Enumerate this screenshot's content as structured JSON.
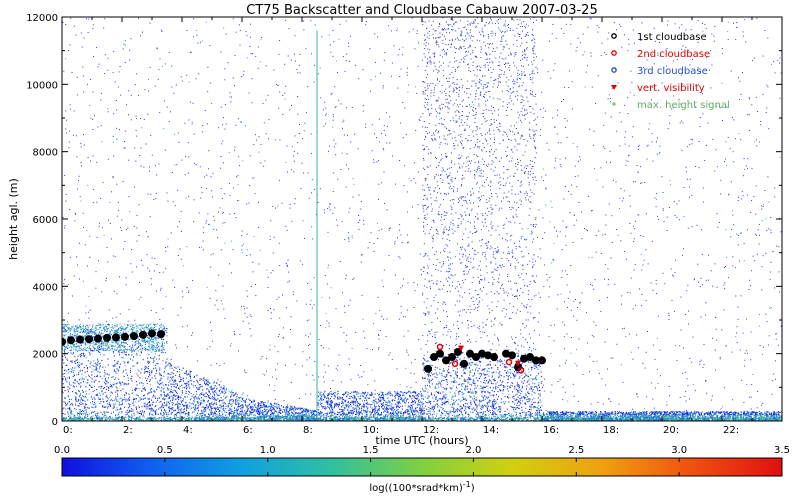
{
  "chart_data": {
    "type": "scatter",
    "title": "CT75 Backscatter and Cloudbase Cabauw 2007-03-25",
    "xlabel": "time UTC (hours)",
    "ylabel": "height agl. (m)",
    "xlim": [
      0,
      24
    ],
    "ylim": [
      0,
      12000
    ],
    "x_ticks": [
      0,
      2,
      4,
      6,
      8,
      10,
      12,
      14,
      16,
      18,
      20,
      22
    ],
    "x_tick_labels": [
      "0:",
      "2:",
      "4:",
      "6:",
      "8:",
      "10:",
      "12:",
      "14:",
      "16:",
      "18:",
      "20:",
      "22:"
    ],
    "y_ticks": [
      0,
      2000,
      4000,
      6000,
      8000,
      10000,
      12000
    ],
    "y_tick_labels": [
      "0",
      "2000",
      "4000",
      "6000",
      "8000",
      "10000",
      "12000"
    ],
    "legend_position": "top-right",
    "legend": [
      {
        "label": "1st cloudbase",
        "color": "#000000",
        "marker": "circle"
      },
      {
        "label": "2nd cloudbase",
        "color": "#e00000",
        "marker": "circle"
      },
      {
        "label": "3rd cloudbase",
        "color": "#2050d0",
        "marker": "circle"
      },
      {
        "label": "vert. visibility",
        "color": "#e00000",
        "marker": "triangle-down"
      },
      {
        "label": "max. height signal",
        "color": "#60b060",
        "marker": "plus"
      }
    ],
    "series": [
      {
        "name": "1st cloudbase",
        "color": "#000000",
        "points": [
          [
            0.0,
            2350
          ],
          [
            0.3,
            2400
          ],
          [
            0.6,
            2420
          ],
          [
            0.9,
            2430
          ],
          [
            1.2,
            2450
          ],
          [
            1.5,
            2470
          ],
          [
            1.8,
            2480
          ],
          [
            2.1,
            2500
          ],
          [
            2.4,
            2520
          ],
          [
            2.7,
            2560
          ],
          [
            3.0,
            2600
          ],
          [
            3.3,
            2580
          ],
          [
            12.2,
            1550
          ],
          [
            12.4,
            1900
          ],
          [
            12.6,
            2000
          ],
          [
            12.8,
            1800
          ],
          [
            13.0,
            1900
          ],
          [
            13.2,
            2050
          ],
          [
            13.4,
            1700
          ],
          [
            13.6,
            2000
          ],
          [
            13.8,
            1900
          ],
          [
            14.0,
            2000
          ],
          [
            14.2,
            1950
          ],
          [
            14.4,
            1900
          ],
          [
            14.8,
            2000
          ],
          [
            15.0,
            1950
          ],
          [
            15.2,
            1600
          ],
          [
            15.4,
            1850
          ],
          [
            15.6,
            1900
          ],
          [
            15.8,
            1800
          ],
          [
            16.0,
            1800
          ]
        ]
      },
      {
        "name": "2nd cloudbase",
        "color": "#e00000",
        "points": [
          [
            12.6,
            2200
          ],
          [
            13.1,
            1700
          ],
          [
            14.9,
            1750
          ],
          [
            15.3,
            1500
          ]
        ]
      },
      {
        "name": "vert. visibility",
        "color": "#e00000",
        "points": [
          [
            13.3,
            2150
          ],
          [
            15.2,
            1700
          ]
        ]
      }
    ],
    "colorbar": {
      "label": "log((100*srad*km)^-1)",
      "range": [
        0.0,
        3.5
      ],
      "ticks": [
        0.0,
        0.5,
        1.0,
        1.5,
        2.0,
        2.5,
        3.0,
        3.5
      ],
      "tick_labels": [
        "0.0",
        "0.5",
        "1.0",
        "1.5",
        "2.0",
        "2.5",
        "3.0",
        "3.5"
      ],
      "colors": [
        "#1010e0",
        "#1060f0",
        "#10a0e0",
        "#30c0a0",
        "#80d040",
        "#d0d010",
        "#f0a010",
        "#f05010",
        "#e01010"
      ]
    }
  }
}
